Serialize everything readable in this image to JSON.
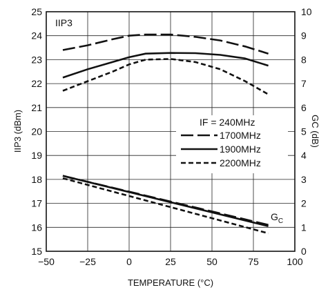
{
  "chart_data": {
    "type": "line",
    "xlabel": "TEMPERATURE (°C)",
    "ylabel": "IIP3 (dBm)",
    "y2label": "GC (dB)",
    "xlim": [
      -50,
      100
    ],
    "ylim": [
      15,
      25
    ],
    "y2lim": [
      0,
      10
    ],
    "xticks": [
      "−50",
      "−25",
      "0",
      "25",
      "50",
      "75",
      "100"
    ],
    "yticks": [
      "15",
      "16",
      "17",
      "18",
      "19",
      "20",
      "21",
      "22",
      "23",
      "24",
      "25"
    ],
    "y2ticks": [
      "0",
      "1",
      "2",
      "3",
      "4",
      "5",
      "6",
      "7",
      "8",
      "9",
      "10"
    ],
    "grid": true,
    "annotations": {
      "iip3": "IIP3",
      "gc_main": "G",
      "gc_sub": "C"
    },
    "legend": {
      "placement": "right",
      "header": "IF = 240MHz",
      "entries": [
        {
          "name": "1700MHz",
          "style": "long-dash"
        },
        {
          "name": "1900MHz",
          "style": "solid"
        },
        {
          "name": "2200MHz",
          "style": "short-dash"
        }
      ]
    },
    "series": [
      {
        "name": "1700MHz",
        "group": "IIP3",
        "axis": "left",
        "style": "long-dash",
        "x": [
          -40,
          -25,
          -10,
          0,
          10,
          25,
          40,
          55,
          70,
          84
        ],
        "y": [
          23.4,
          23.6,
          23.85,
          24.0,
          24.05,
          24.05,
          23.95,
          23.8,
          23.55,
          23.25
        ]
      },
      {
        "name": "1900MHz",
        "group": "IIP3",
        "axis": "left",
        "style": "solid",
        "x": [
          -40,
          -25,
          -10,
          0,
          10,
          25,
          40,
          55,
          70,
          84
        ],
        "y": [
          22.25,
          22.6,
          22.9,
          23.1,
          23.25,
          23.28,
          23.27,
          23.2,
          23.05,
          22.75
        ]
      },
      {
        "name": "2200MHz",
        "group": "IIP3",
        "axis": "left",
        "style": "short-dash",
        "x": [
          -40,
          -25,
          -10,
          0,
          10,
          25,
          40,
          55,
          70,
          84
        ],
        "y": [
          21.7,
          22.1,
          22.5,
          22.8,
          23.0,
          23.03,
          22.9,
          22.6,
          22.1,
          21.55
        ]
      },
      {
        "name": "1700MHz",
        "group": "GC",
        "axis": "right",
        "style": "long-dash",
        "x": [
          -40,
          84
        ],
        "y": [
          3.15,
          1.1
        ]
      },
      {
        "name": "1900MHz",
        "group": "GC",
        "axis": "right",
        "style": "solid",
        "x": [
          -40,
          84
        ],
        "y": [
          3.15,
          1.05
        ]
      },
      {
        "name": "2200MHz",
        "group": "GC",
        "axis": "right",
        "style": "short-dash",
        "x": [
          -40,
          84
        ],
        "y": [
          3.05,
          0.75
        ]
      }
    ]
  }
}
